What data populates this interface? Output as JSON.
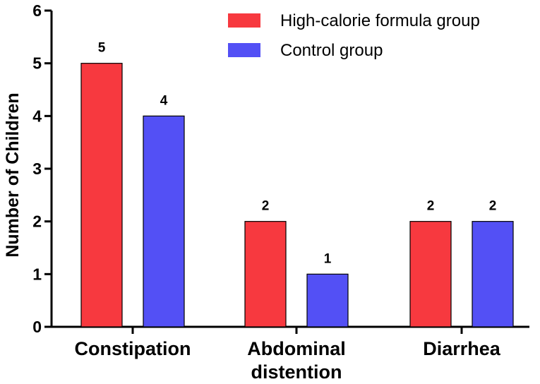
{
  "chart_data": {
    "type": "bar",
    "title": "",
    "xlabel": "",
    "ylabel": "Number of Children",
    "ylim": [
      0,
      6
    ],
    "yticks": [
      0,
      1,
      2,
      3,
      4,
      5,
      6
    ],
    "grid": false,
    "legend_position": "top-right",
    "categories": [
      [
        "Constipation"
      ],
      [
        "Abdominal",
        "distention"
      ],
      [
        "Diarrhea"
      ]
    ],
    "series": [
      {
        "name": "High-calorie formula group",
        "color": "#f7393f",
        "values": [
          5,
          2,
          2
        ]
      },
      {
        "name": "Control group",
        "color": "#5350f5",
        "values": [
          4,
          1,
          2
        ]
      }
    ]
  }
}
